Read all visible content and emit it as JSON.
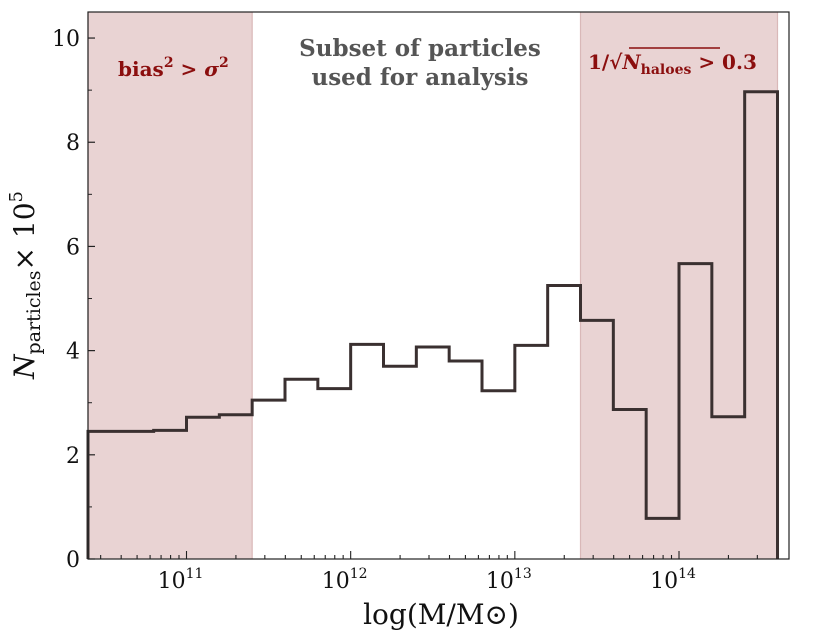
{
  "chart_data": {
    "type": "histogram",
    "title": "",
    "xlabel": "log(M/M⊙)",
    "ylabel_main": "N",
    "ylabel_sub": "particles",
    "ylabel_mult": "× 10",
    "ylabel_exp": "5",
    "xscale": "log10",
    "xlim_log": [
      10.4,
      14.67
    ],
    "ylim": [
      0,
      10.5
    ],
    "x_tick_base": "10",
    "xticks": [
      {
        "log": 11,
        "exp": "11"
      },
      {
        "log": 12,
        "exp": "12"
      },
      {
        "log": 13,
        "exp": "13"
      },
      {
        "log": 14,
        "exp": "14"
      }
    ],
    "yticks": [
      {
        "value": 0,
        "label": "0"
      },
      {
        "value": 2,
        "label": "2"
      },
      {
        "value": 4,
        "label": "4"
      },
      {
        "value": 6,
        "label": "6"
      },
      {
        "value": 8,
        "label": "8"
      },
      {
        "value": 10,
        "label": "10"
      }
    ],
    "bin_edges_log": [
      10.4,
      10.6,
      10.8,
      11.0,
      11.2,
      11.4,
      11.6,
      11.8,
      12.0,
      12.2,
      12.4,
      12.6,
      12.8,
      13.0,
      13.2,
      13.4,
      13.6,
      13.8,
      14.0,
      14.2,
      14.4,
      14.6
    ],
    "counts": [
      2.45,
      2.45,
      2.47,
      2.72,
      2.77,
      3.05,
      3.45,
      3.27,
      4.12,
      3.7,
      4.07,
      3.8,
      3.23,
      4.1,
      5.25,
      4.58,
      2.87,
      0.78,
      5.67,
      2.73,
      8.97
    ],
    "line_color": "#3a3030",
    "shaded_regions": [
      {
        "x_log": [
          10.4,
          11.4
        ],
        "color": "#e9d3d3",
        "label": "left-excluded"
      },
      {
        "x_log": [
          13.4,
          14.6
        ],
        "color": "#e9d3d3",
        "label": "right-excluded"
      }
    ]
  },
  "annotations": {
    "center_line1": "Subset of particles",
    "center_line2": "used for analysis",
    "left_base": "bias",
    "left_exp": "2",
    "left_rel": " > ",
    "left_sigma": "σ",
    "left_sigma_exp": "2",
    "right_prefix": "1/",
    "right_radical": "√",
    "right_N": "N",
    "right_sub": "haloes",
    "right_suffix": " > 0.3",
    "annotation_color": "#8b0e0e",
    "center_color": "#555555"
  }
}
